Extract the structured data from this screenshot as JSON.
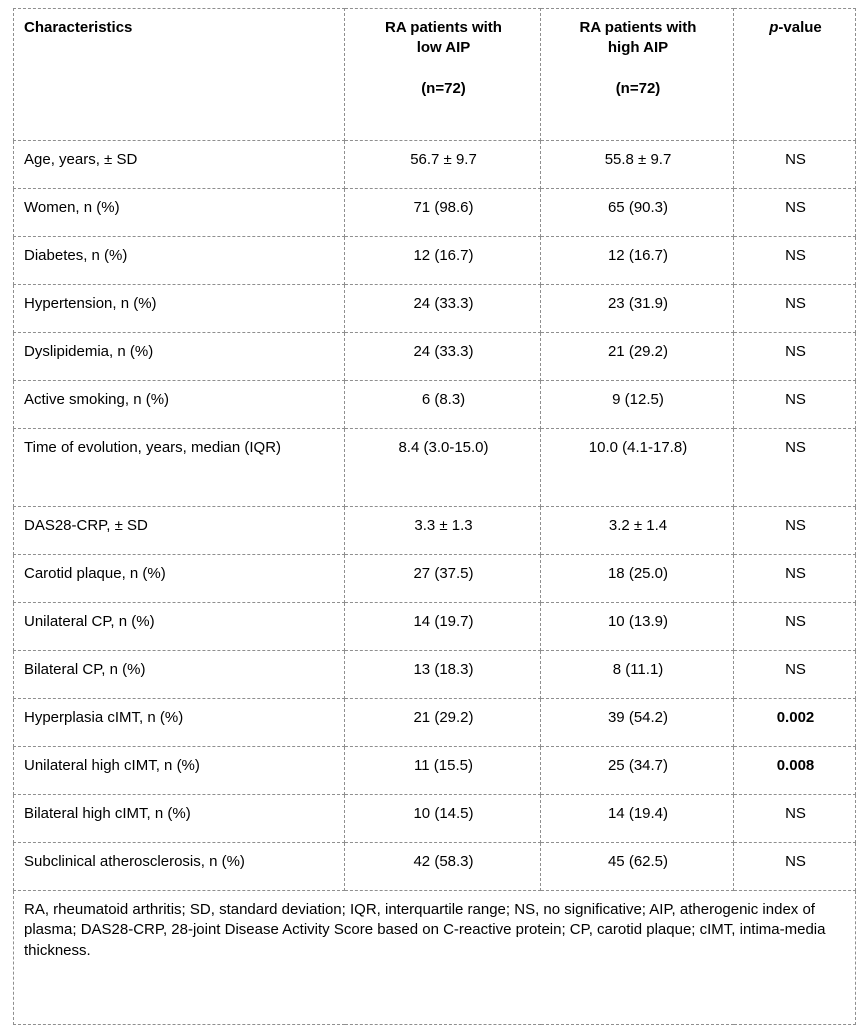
{
  "table": {
    "header": {
      "characteristics": "Characteristics",
      "col_low": {
        "line1": "RA patients with",
        "line2": "low AIP",
        "n": "(n=72)"
      },
      "col_high": {
        "line1": "RA patients with",
        "line2": "high AIP",
        "n": "(n=72)"
      },
      "p_italic": "p",
      "p_rest": "-value"
    },
    "rows": [
      {
        "characteristic": "Age, years, ± SD",
        "low": "56.7 ± 9.7",
        "high": "55.8 ± 9.7",
        "p": "NS",
        "bold": false,
        "tall": false
      },
      {
        "characteristic": "Women, n (%)",
        "low": "71 (98.6)",
        "high": "65 (90.3)",
        "p": "NS",
        "bold": false,
        "tall": false
      },
      {
        "characteristic": "Diabetes, n (%)",
        "low": "12 (16.7)",
        "high": "12 (16.7)",
        "p": "NS",
        "bold": false,
        "tall": false
      },
      {
        "characteristic": "Hypertension, n (%)",
        "low": "24 (33.3)",
        "high": "23 (31.9)",
        "p": "NS",
        "bold": false,
        "tall": false
      },
      {
        "characteristic": "Dyslipidemia, n (%)",
        "low": "24 (33.3)",
        "high": "21 (29.2)",
        "p": "NS",
        "bold": false,
        "tall": false
      },
      {
        "characteristic": "Active smoking, n (%)",
        "low": "6 (8.3)",
        "high": "9 (12.5)",
        "p": "NS",
        "bold": false,
        "tall": false
      },
      {
        "characteristic": "Time of evolution, years, median (IQR)",
        "low": "8.4 (3.0-15.0)",
        "high": "10.0 (4.1-17.8)",
        "p": "NS",
        "bold": false,
        "tall": true
      },
      {
        "characteristic": "DAS28-CRP, ± SD",
        "low": "3.3 ± 1.3",
        "high": "3.2 ± 1.4",
        "p": "NS",
        "bold": false,
        "tall": false
      },
      {
        "characteristic": "Carotid plaque, n (%)",
        "low": "27 (37.5)",
        "high": "18 (25.0)",
        "p": "NS",
        "bold": false,
        "tall": false
      },
      {
        "characteristic": "Unilateral CP, n (%)",
        "low": "14 (19.7)",
        "high": "10 (13.9)",
        "p": "NS",
        "bold": false,
        "tall": false
      },
      {
        "characteristic": "Bilateral CP, n (%)",
        "low": "13 (18.3)",
        "high": "8 (11.1)",
        "p": "NS",
        "bold": false,
        "tall": false
      },
      {
        "characteristic": "Hyperplasia cIMT, n (%)",
        "low": "21 (29.2)",
        "high": "39 (54.2)",
        "p": "0.002",
        "bold": true,
        "tall": false
      },
      {
        "characteristic": "Unilateral high cIMT, n (%)",
        "low": "11 (15.5)",
        "high": "25 (34.7)",
        "p": "0.008",
        "bold": true,
        "tall": false
      },
      {
        "characteristic": "Bilateral high cIMT, n (%)",
        "low": "10 (14.5)",
        "high": "14 (19.4)",
        "p": "NS",
        "bold": false,
        "tall": false
      },
      {
        "characteristic": "Subclinical atherosclerosis, n (%)",
        "low": "42 (58.3)",
        "high": "45 (62.5)",
        "p": "NS",
        "bold": false,
        "tall": false
      }
    ],
    "footnote": "RA, rheumatoid arthritis; SD, standard deviation; IQR, interquartile range; NS, no significative; AIP, atherogenic index of plasma; DAS28-CRP, 28-joint Disease Activity Score based on C-reactive protein; CP, carotid plaque; cIMT, intima-media thickness."
  }
}
